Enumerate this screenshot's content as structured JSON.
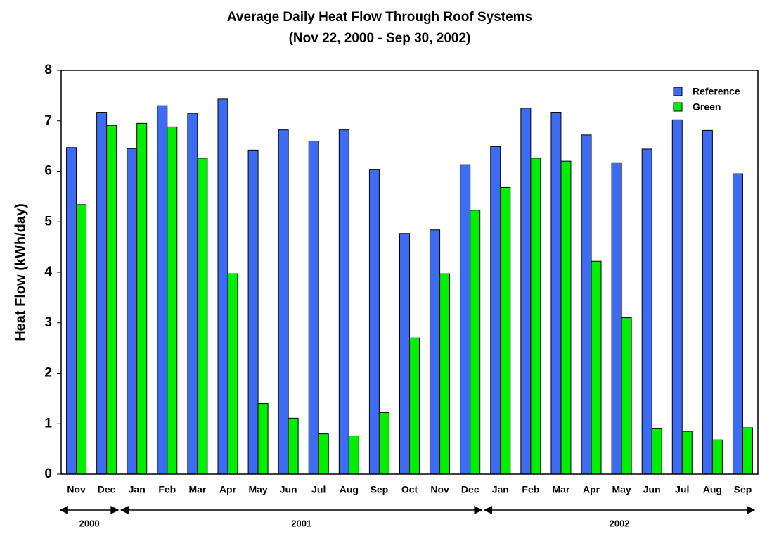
{
  "chart_data": {
    "type": "bar",
    "title": "Average Daily Heat Flow Through Roof Systems",
    "subtitle": "(Nov 22, 2000 - Sep 30, 2002)",
    "y_label": "Heat Flow (kWh/day)",
    "categories": [
      "Nov",
      "Dec",
      "Jan",
      "Feb",
      "Mar",
      "Apr",
      "May",
      "Jun",
      "Jul",
      "Aug",
      "Sep",
      "Oct",
      "Nov",
      "Dec",
      "Jan",
      "Feb",
      "Mar",
      "Apr",
      "May",
      "Jun",
      "Jul",
      "Aug",
      "Sep"
    ],
    "series": [
      {
        "name": "Reference",
        "color": "#3d6cf2",
        "values": [
          6.47,
          7.17,
          6.45,
          7.3,
          7.15,
          7.43,
          6.42,
          6.82,
          6.6,
          6.82,
          6.04,
          4.77,
          4.84,
          6.13,
          6.49,
          7.25,
          7.17,
          6.72,
          6.17,
          6.44,
          7.02,
          6.81,
          5.95
        ]
      },
      {
        "name": "Green",
        "color": "#00ee00",
        "values": [
          5.34,
          6.91,
          6.95,
          6.88,
          6.26,
          3.97,
          1.4,
          1.11,
          0.8,
          0.76,
          1.22,
          2.7,
          3.97,
          5.23,
          5.68,
          6.26,
          6.2,
          4.22,
          3.1,
          0.9,
          0.85,
          0.68,
          0.92
        ]
      }
    ],
    "year_groups": [
      {
        "label": "2000",
        "span": 2
      },
      {
        "label": "2001",
        "span": 12
      },
      {
        "label": "2002",
        "span": 9
      }
    ],
    "ylim": [
      0,
      8
    ],
    "yticks": [
      0,
      1,
      2,
      3,
      4,
      5,
      6,
      7,
      8
    ],
    "grid": false,
    "legend": "top-right"
  }
}
